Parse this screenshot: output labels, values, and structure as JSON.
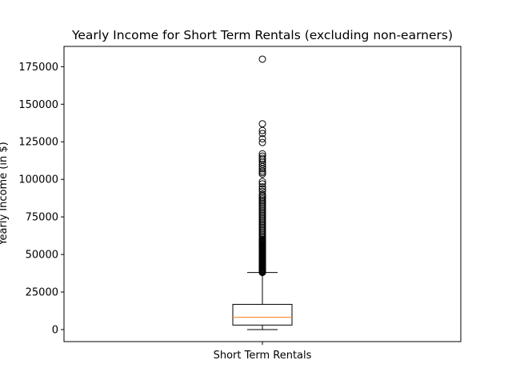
{
  "chart_data": {
    "type": "box",
    "title": "Yearly Income for Short Term Rentals (excluding non-earners)",
    "xlabel": "",
    "ylabel": "Yearly Income (in $)",
    "categories": [
      "Short Term Rentals"
    ],
    "ylim": [
      -8000,
      188500
    ],
    "yticks": [
      0,
      25000,
      50000,
      75000,
      100000,
      125000,
      150000,
      175000
    ],
    "ytick_labels": [
      "0",
      "25000",
      "50000",
      "75000",
      "100000",
      "125000",
      "150000",
      "175000"
    ],
    "grid": false,
    "boxes": [
      {
        "name": "Short Term Rentals",
        "whisker_low": 0,
        "q1": 3000,
        "median": 8200,
        "q3": 16800,
        "whisker_high": 38000,
        "outliers": [
          38000,
          38500,
          39000,
          39500,
          40000,
          40500,
          41000,
          41500,
          42000,
          42500,
          43000,
          43500,
          44000,
          44500,
          45000,
          45500,
          46000,
          46500,
          47000,
          47500,
          48000,
          48500,
          49000,
          49500,
          50000,
          50500,
          51000,
          51500,
          52000,
          52500,
          53000,
          53500,
          54000,
          54500,
          55000,
          55500,
          56000,
          56500,
          57000,
          57500,
          58000,
          58500,
          59000,
          59500,
          60000,
          61000,
          62000,
          63000,
          64000,
          65000,
          66000,
          67000,
          68000,
          69000,
          70000,
          71000,
          72000,
          73000,
          74000,
          75000,
          76000,
          77000,
          78000,
          79000,
          80000,
          81000,
          82000,
          83000,
          84000,
          85000,
          86000,
          87000,
          88000,
          89000,
          90000,
          92000,
          93500,
          95000,
          97000,
          98500,
          103500,
          104500,
          105500,
          107000,
          108500,
          110000,
          111500,
          113000,
          114000,
          115500,
          117000,
          124500,
          127000,
          130500,
          132500,
          137000,
          180000
        ]
      }
    ]
  }
}
